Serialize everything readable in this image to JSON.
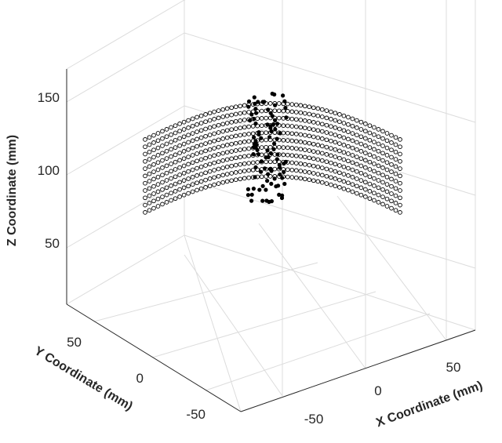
{
  "chart_data": {
    "type": "scatter",
    "title": "",
    "xlabel": "X Coordinate (mm)",
    "ylabel": "Y Coordinate (mm)",
    "zlabel": "Z Coordinate (mm)",
    "x_ticks": [
      "-50",
      "0",
      "50"
    ],
    "y_ticks": [
      "-50",
      "0",
      "50"
    ],
    "z_ticks": [
      "50",
      "100",
      "150"
    ],
    "xlim": [
      -100,
      100
    ],
    "ylim": [
      -100,
      100
    ],
    "zlim": [
      0,
      175
    ],
    "grid": true,
    "projection": "3d",
    "marker": "open circle",
    "marker_color": "#000000",
    "grid_color": "#dcdcdc",
    "axis_color": "#262626",
    "series": [
      {
        "description_of_shape": "curved 3D point cloud (cylindrical shell segment) of sampled surface points",
        "rows": [
          {
            "z": 85,
            "x_range": [
              -85,
              60
            ],
            "y": 20
          },
          {
            "z": 90,
            "x_range": [
              -85,
              60
            ],
            "y": 20
          },
          {
            "z": 95,
            "x_range": [
              -85,
              60
            ],
            "y": 20
          },
          {
            "z": 100,
            "x_range": [
              -85,
              60
            ],
            "y": 20
          },
          {
            "z": 105,
            "x_range": [
              -85,
              60
            ],
            "y": 20
          },
          {
            "z": 110,
            "x_range": [
              -85,
              60
            ],
            "y": 20
          },
          {
            "z": 115,
            "x_range": [
              -85,
              60
            ],
            "y": 20
          },
          {
            "z": 120,
            "x_range": [
              -85,
              60
            ],
            "y": 20
          },
          {
            "z": 125,
            "x_range": [
              -85,
              60
            ],
            "y": 20
          },
          {
            "z": 130,
            "x_range": [
              -85,
              60
            ],
            "y": 20
          },
          {
            "z": 135,
            "x_range": [
              -85,
              60
            ],
            "y": 20
          }
        ]
      }
    ]
  }
}
